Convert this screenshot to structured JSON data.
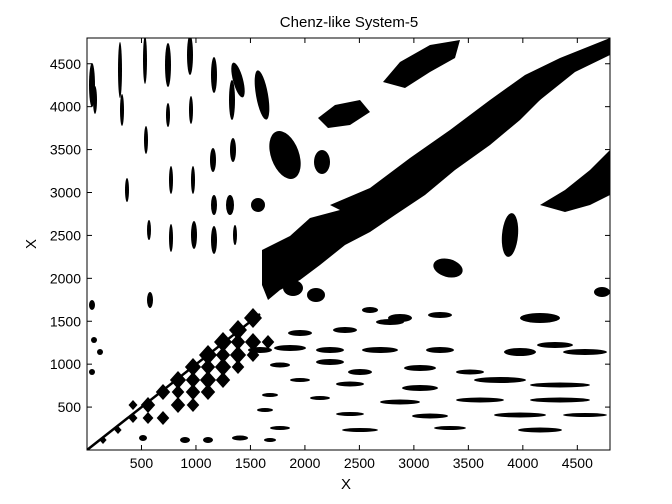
{
  "chart_data": {
    "type": "heatmap",
    "title": "Chenz-like System-5",
    "xlabel": "X",
    "ylabel": "X",
    "xlim": [
      0,
      4800
    ],
    "ylim": [
      0,
      4800
    ],
    "xticks": [
      500,
      1000,
      1500,
      2000,
      2500,
      3000,
      3500,
      4000,
      4500
    ],
    "yticks": [
      500,
      1000,
      1500,
      2000,
      2500,
      3000,
      3500,
      4000,
      4500
    ],
    "grid": false,
    "colors": {
      "background": "#ffffff",
      "foreground": "#000000"
    }
  }
}
